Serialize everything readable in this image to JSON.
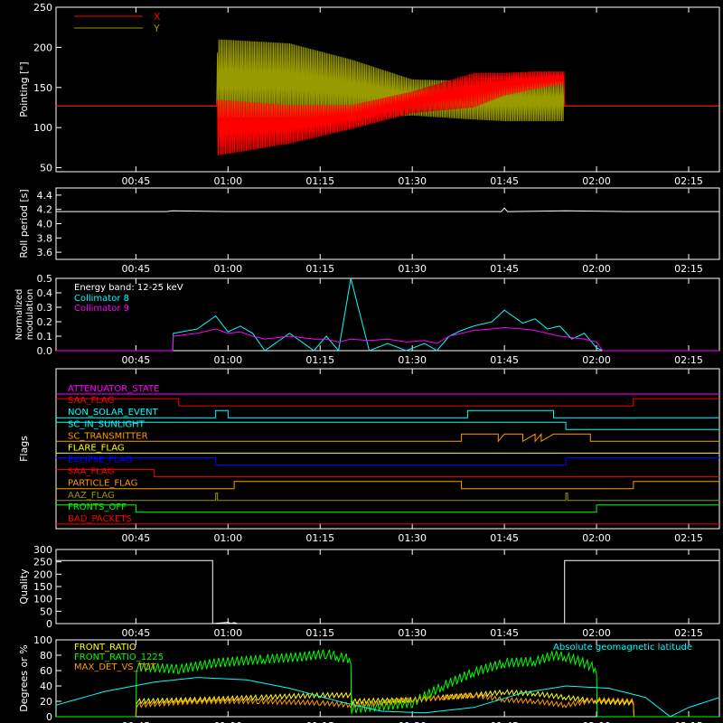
{
  "figure": {
    "background": "#000000",
    "foreground": "#ffffff",
    "time_ticks": [
      "00:45",
      "01:00",
      "01:15",
      "01:30",
      "01:45",
      "02:00",
      "02:15"
    ],
    "time_tick_minutes": [
      45,
      60,
      75,
      90,
      105,
      120,
      135
    ],
    "x_range_minutes": [
      32,
      140
    ]
  },
  "chart_data": [
    {
      "id": "pointing",
      "type": "line",
      "ylabel": "Pointing [\"]",
      "ylim": [
        45,
        250
      ],
      "yticks": [
        50,
        100,
        150,
        200,
        250
      ],
      "legend_position": "top-left",
      "series": [
        {
          "name": "X",
          "color": "#ff0000",
          "x": [
            32,
            58.2,
            58.3,
            70,
            80,
            90,
            100,
            105,
            110,
            114.7,
            114.8,
            140
          ],
          "lower": [
            127,
            127,
            65,
            80,
            98,
            118,
            125,
            140,
            148,
            154,
            127,
            127
          ],
          "upper": [
            127,
            127,
            135,
            128,
            128,
            145,
            168,
            168,
            170,
            170,
            127,
            127
          ]
        },
        {
          "name": "Y",
          "color": "#999900",
          "x": [
            32,
            58.2,
            58.3,
            70,
            80,
            90,
            100,
            105,
            110,
            114.7,
            114.8,
            140
          ],
          "lower": [
            127,
            127,
            112,
            112,
            112,
            115,
            110,
            108,
            108,
            108,
            127,
            127
          ],
          "upper": [
            127,
            127,
            210,
            205,
            185,
            160,
            158,
            158,
            158,
            158,
            127,
            127
          ]
        }
      ]
    },
    {
      "id": "roll_period",
      "type": "line",
      "ylabel": "Roll period [s]",
      "ylim": [
        3.5,
        4.5
      ],
      "yticks": [
        3.6,
        3.8,
        4.0,
        4.2,
        4.4
      ],
      "series": [
        {
          "name": "",
          "color": "#ffffff",
          "x": [
            32,
            50,
            51,
            60,
            70,
            90,
            104.5,
            105,
            105.5,
            106,
            115,
            125,
            140
          ],
          "values": [
            4.17,
            4.17,
            4.18,
            4.17,
            4.17,
            4.17,
            4.17,
            4.22,
            4.17,
            4.17,
            4.18,
            4.17,
            4.17
          ]
        }
      ]
    },
    {
      "id": "modulation",
      "type": "line",
      "ylabel": "Normalized modulation",
      "ylim": [
        0,
        0.5
      ],
      "yticks": [
        0.0,
        0.1,
        0.2,
        0.3,
        0.4,
        0.5
      ],
      "annotation": "Energy band: 12-25 keV",
      "series": [
        {
          "name": "Collimator 8",
          "color": "#00ffff",
          "x": [
            32,
            51,
            51.1,
            55,
            58,
            60,
            62,
            64,
            66,
            70,
            74,
            76,
            78,
            80,
            83,
            86,
            89,
            92,
            94,
            96,
            98,
            100,
            103,
            105,
            108,
            110,
            112,
            114,
            116,
            118,
            120,
            121,
            140
          ],
          "values": [
            0,
            0,
            0.12,
            0.15,
            0.24,
            0.13,
            0.17,
            0.12,
            0.0,
            0.12,
            0.0,
            0.1,
            0.0,
            0.5,
            0.0,
            0.05,
            0.0,
            0.05,
            0.0,
            0.1,
            0.14,
            0.17,
            0.2,
            0.28,
            0.19,
            0.22,
            0.15,
            0.17,
            0.08,
            0.12,
            0.02,
            0,
            0
          ]
        },
        {
          "name": "Collimator 9",
          "color": "#ff00ff",
          "x": [
            32,
            51,
            51.1,
            55,
            58,
            60,
            62,
            64,
            66,
            70,
            74,
            76,
            78,
            80,
            83,
            86,
            89,
            92,
            94,
            96,
            98,
            100,
            103,
            105,
            108,
            110,
            112,
            114,
            116,
            118,
            120,
            121,
            140
          ],
          "values": [
            0,
            0,
            0.1,
            0.12,
            0.15,
            0.12,
            0.13,
            0.1,
            0.08,
            0.1,
            0.08,
            0.08,
            0.06,
            0.08,
            0.07,
            0.08,
            0.06,
            0.07,
            0.05,
            0.1,
            0.12,
            0.14,
            0.15,
            0.16,
            0.15,
            0.14,
            0.12,
            0.1,
            0.09,
            0.08,
            0.06,
            0,
            0
          ]
        }
      ]
    },
    {
      "id": "flags",
      "type": "line",
      "ylabel": "Flags",
      "flags": [
        {
          "name": "ATTENUATOR_STATE",
          "color": "#ff00ff",
          "x": [
            32,
            140
          ],
          "states": [
            0,
            0
          ]
        },
        {
          "name": "SAA_FLAG",
          "color": "#ff0000",
          "x": [
            32,
            52,
            52,
            126,
            126,
            140
          ],
          "states": [
            1,
            1,
            0,
            0,
            1,
            1
          ]
        },
        {
          "name": "NON_SOLAR_EVENT",
          "color": "#00ffff",
          "x": [
            32,
            58,
            58,
            60,
            60,
            99,
            99,
            113,
            113,
            140
          ],
          "states": [
            0,
            0,
            1,
            1,
            0,
            0,
            1,
            1,
            0,
            0
          ]
        },
        {
          "name": "SC_IN_SUNLIGHT",
          "color": "#00ffff",
          "x": [
            32,
            115,
            115,
            140
          ],
          "states": [
            1,
            1,
            0,
            0
          ]
        },
        {
          "name": "SC_TRANSMITTER",
          "color": "#ff9900",
          "x": [
            32,
            98,
            98,
            104,
            104,
            105,
            105,
            108,
            108,
            110,
            110,
            111,
            111,
            113,
            113,
            119,
            119,
            140
          ],
          "states": [
            0,
            0,
            1,
            1,
            0,
            1,
            1,
            1,
            0,
            1,
            0,
            1,
            0,
            1,
            1,
            1,
            0,
            0
          ]
        },
        {
          "name": "FLARE_FLAG",
          "color": "#ffff00",
          "x": [
            32,
            140
          ],
          "states": [
            0,
            0
          ]
        },
        {
          "name": "ECLIPSE_FLAG",
          "color": "#0000ff",
          "x": [
            32,
            58,
            58,
            115,
            115,
            140
          ],
          "states": [
            1,
            1,
            0,
            0,
            1,
            1
          ]
        },
        {
          "name": "SAA_FLAG",
          "color": "#ff0000",
          "x": [
            32,
            48,
            48,
            140
          ],
          "states": [
            1,
            1,
            0,
            0
          ]
        },
        {
          "name": "PARTICLE_FLAG",
          "color": "#ff9900",
          "x": [
            32,
            61,
            61,
            98,
            98,
            126,
            126,
            140
          ],
          "states": [
            0,
            0,
            1,
            1,
            0,
            0,
            1,
            1
          ]
        },
        {
          "name": "AAZ_FLAG",
          "color": "#999900",
          "x": [
            32,
            58,
            58,
            58.3,
            58.3,
            115,
            115,
            115.3,
            115.3,
            140
          ],
          "states": [
            0,
            0,
            1,
            1,
            0,
            0,
            1,
            1,
            0,
            0
          ]
        },
        {
          "name": "FRONTS_OFF",
          "color": "#00ff00",
          "x": [
            32,
            45,
            45,
            120,
            120,
            140
          ],
          "states": [
            1,
            1,
            0,
            0,
            1,
            1
          ]
        },
        {
          "name": "BAD_PACKETS",
          "color": "#ff0000",
          "x": [
            32,
            140
          ],
          "states": [
            0,
            0
          ]
        }
      ]
    },
    {
      "id": "quality",
      "type": "line",
      "ylabel": "Quality",
      "ylim": [
        0,
        300
      ],
      "yticks": [
        0,
        50,
        100,
        150,
        200,
        250,
        300
      ],
      "series": [
        {
          "name": "",
          "color": "#ffffff",
          "x": [
            32,
            57.5,
            57.5,
            60,
            60.5,
            61,
            61.5,
            62,
            114.8,
            114.8,
            140
          ],
          "values": [
            255,
            255,
            0,
            5,
            0,
            4,
            0,
            0,
            0,
            255,
            255
          ]
        }
      ]
    },
    {
      "id": "ratios",
      "type": "line",
      "ylabel": "Degrees or %",
      "ylim": [
        0,
        100
      ],
      "yticks": [
        0,
        20,
        40,
        60,
        80,
        100
      ],
      "series": [
        {
          "name": "FRONT_RATIO",
          "color": "#ffff00",
          "x": [
            45,
            45.1,
            55,
            65,
            75,
            80.1,
            80.2,
            90,
            100,
            105,
            110,
            115,
            120,
            126,
            126.1
          ],
          "values": [
            0,
            20,
            22,
            25,
            28,
            28,
            20,
            22,
            28,
            32,
            30,
            25,
            20,
            18,
            0
          ]
        },
        {
          "name": "FRONT_RATIO_1225",
          "color": "#00ff00",
          "x": [
            32,
            45,
            45.1,
            52,
            58,
            66,
            72,
            76,
            78,
            80,
            80.1,
            90,
            95,
            100,
            105,
            110,
            113,
            115,
            118,
            120,
            120.1,
            140
          ],
          "values": [
            0,
            0,
            65,
            62,
            70,
            75,
            78,
            82,
            78,
            75,
            10,
            18,
            40,
            58,
            70,
            72,
            80,
            78,
            70,
            62,
            0,
            0
          ]
        },
        {
          "name": "MAX_DET_VS_TOT",
          "color": "#ff9900",
          "x": [
            45,
            45.1,
            55,
            65,
            75,
            80,
            85,
            90,
            95,
            100,
            105,
            110,
            115,
            120,
            126,
            126.1
          ],
          "values": [
            0,
            15,
            20,
            20,
            18,
            15,
            18,
            22,
            25,
            28,
            22,
            20,
            15,
            22,
            20,
            0
          ]
        },
        {
          "name": "Absolute geomagnetic latitude",
          "color": "#00ffff",
          "x": [
            32,
            40,
            48,
            55,
            63,
            70,
            78,
            85,
            92,
            100,
            108,
            115,
            122,
            128,
            132,
            135,
            140
          ],
          "values": [
            15,
            33,
            45,
            51,
            48,
            37,
            20,
            7,
            5,
            12,
            31,
            40,
            37,
            25,
            0,
            12,
            25
          ]
        }
      ]
    }
  ]
}
